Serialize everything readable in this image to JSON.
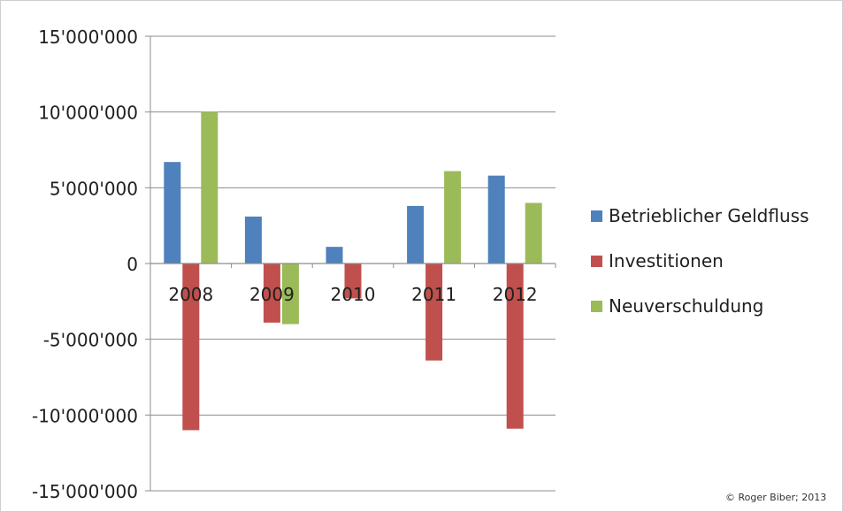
{
  "chart_data": {
    "type": "bar",
    "categories": [
      "2008",
      "2009",
      "2010",
      "2011",
      "2012"
    ],
    "series": [
      {
        "name": "Betrieblicher Geldfluss",
        "color": "#4f81bd",
        "values": [
          6700000,
          3100000,
          1100000,
          3800000,
          5800000
        ]
      },
      {
        "name": "Investitionen",
        "color": "#c0504d",
        "values": [
          -11000000,
          -3900000,
          -2300000,
          -6400000,
          -10900000
        ]
      },
      {
        "name": "Neuverschuldung",
        "color": "#9bbb59",
        "values": [
          10000000,
          -4000000,
          0,
          6100000,
          4000000
        ]
      }
    ],
    "yticks": [
      "15'000'000",
      "10'000'000",
      "5'000'000",
      "0",
      "-5'000'000",
      "-10'000'000",
      "-15'000'000"
    ],
    "ytick_values": [
      15000000,
      10000000,
      5000000,
      0,
      -5000000,
      -10000000,
      -15000000
    ],
    "ylim": [
      -15000000,
      15000000
    ],
    "grid": true,
    "legend_position": "right"
  },
  "credit": "© Roger Biber; 2013"
}
